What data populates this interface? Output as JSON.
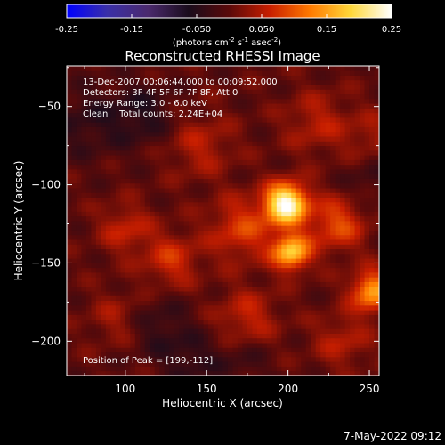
{
  "chart_data": {
    "type": "heatmap",
    "title": "Reconstructed RHESSI Image",
    "xlabel": "Heliocentric X (arcsec)",
    "ylabel": "Heliocentric Y (arcsec)",
    "xlim": [
      64,
      256
    ],
    "ylim": [
      -222,
      -24
    ],
    "x_ticks": [
      100,
      150,
      200,
      250
    ],
    "y_ticks": [
      -50,
      -100,
      -150,
      -200
    ],
    "colorbar": {
      "range": [
        -0.25,
        0.25
      ],
      "ticks": [
        "-0.25",
        "-0.15",
        "-0.050",
        "0.050",
        "0.15",
        "0.25"
      ],
      "tick_values": [
        -0.25,
        -0.15,
        -0.05,
        0.05,
        0.15,
        0.25
      ],
      "unit_label": "(photons cm",
      "unit_sup1": "-2",
      "unit_mid1": " s",
      "unit_sup2": "-1",
      "unit_mid2": " asec",
      "unit_sup3": "-2",
      "unit_end": ")"
    },
    "colormap": [
      "#0000ff",
      "#3a2fa8",
      "#4b2a6e",
      "#1a0c1c",
      "#5a0a0a",
      "#c81e00",
      "#ff7a00",
      "#ffd83a",
      "#ffffff"
    ],
    "annotations": [
      "13-Dec-2007 00:06:44.000 to 00:09:52.000",
      "Detectors: 3F 4F 5F 6F 7F 8F, Att 0",
      "Energy Range: 3.0 - 6.0 keV",
      "Clean    Total counts: 2.24E+04"
    ],
    "peak_label": "Position of Peak = [199,-112]",
    "peak": [
      199,
      -112
    ],
    "sources": [
      {
        "x": 199,
        "y": -112,
        "amp": 0.25,
        "sigma": 9
      },
      {
        "x": 202,
        "y": -143,
        "amp": 0.18,
        "sigma": 8
      },
      {
        "x": 252,
        "y": -168,
        "amp": 0.15,
        "sigma": 9
      },
      {
        "x": 230,
        "y": -125,
        "amp": 0.09,
        "sigma": 12
      },
      {
        "x": 172,
        "y": -128,
        "amp": 0.08,
        "sigma": 14
      },
      {
        "x": 128,
        "y": -148,
        "amp": 0.07,
        "sigma": 12
      },
      {
        "x": 100,
        "y": -128,
        "amp": 0.06,
        "sigma": 11
      },
      {
        "x": 146,
        "y": -75,
        "amp": 0.05,
        "sigma": 14
      },
      {
        "x": 218,
        "y": -60,
        "amp": 0.05,
        "sigma": 14
      },
      {
        "x": 175,
        "y": -185,
        "amp": 0.06,
        "sigma": 13
      },
      {
        "x": 233,
        "y": -200,
        "amp": 0.05,
        "sigma": 12
      },
      {
        "x": 95,
        "y": -185,
        "amp": 0.04,
        "sigma": 12
      },
      {
        "x": 252,
        "y": -70,
        "amp": 0.04,
        "sigma": 12
      },
      {
        "x": 75,
        "y": -60,
        "amp": -0.04,
        "sigma": 16
      },
      {
        "x": 110,
        "y": -55,
        "amp": -0.05,
        "sigma": 14
      },
      {
        "x": 120,
        "y": -190,
        "amp": -0.04,
        "sigma": 14
      },
      {
        "x": 140,
        "y": -212,
        "amp": -0.04,
        "sigma": 12
      },
      {
        "x": 172,
        "y": -212,
        "amp": -0.03,
        "sigma": 12
      },
      {
        "x": 250,
        "y": -95,
        "amp": -0.03,
        "sigma": 12
      }
    ]
  },
  "timestamp": "7-May-2022 09:12"
}
